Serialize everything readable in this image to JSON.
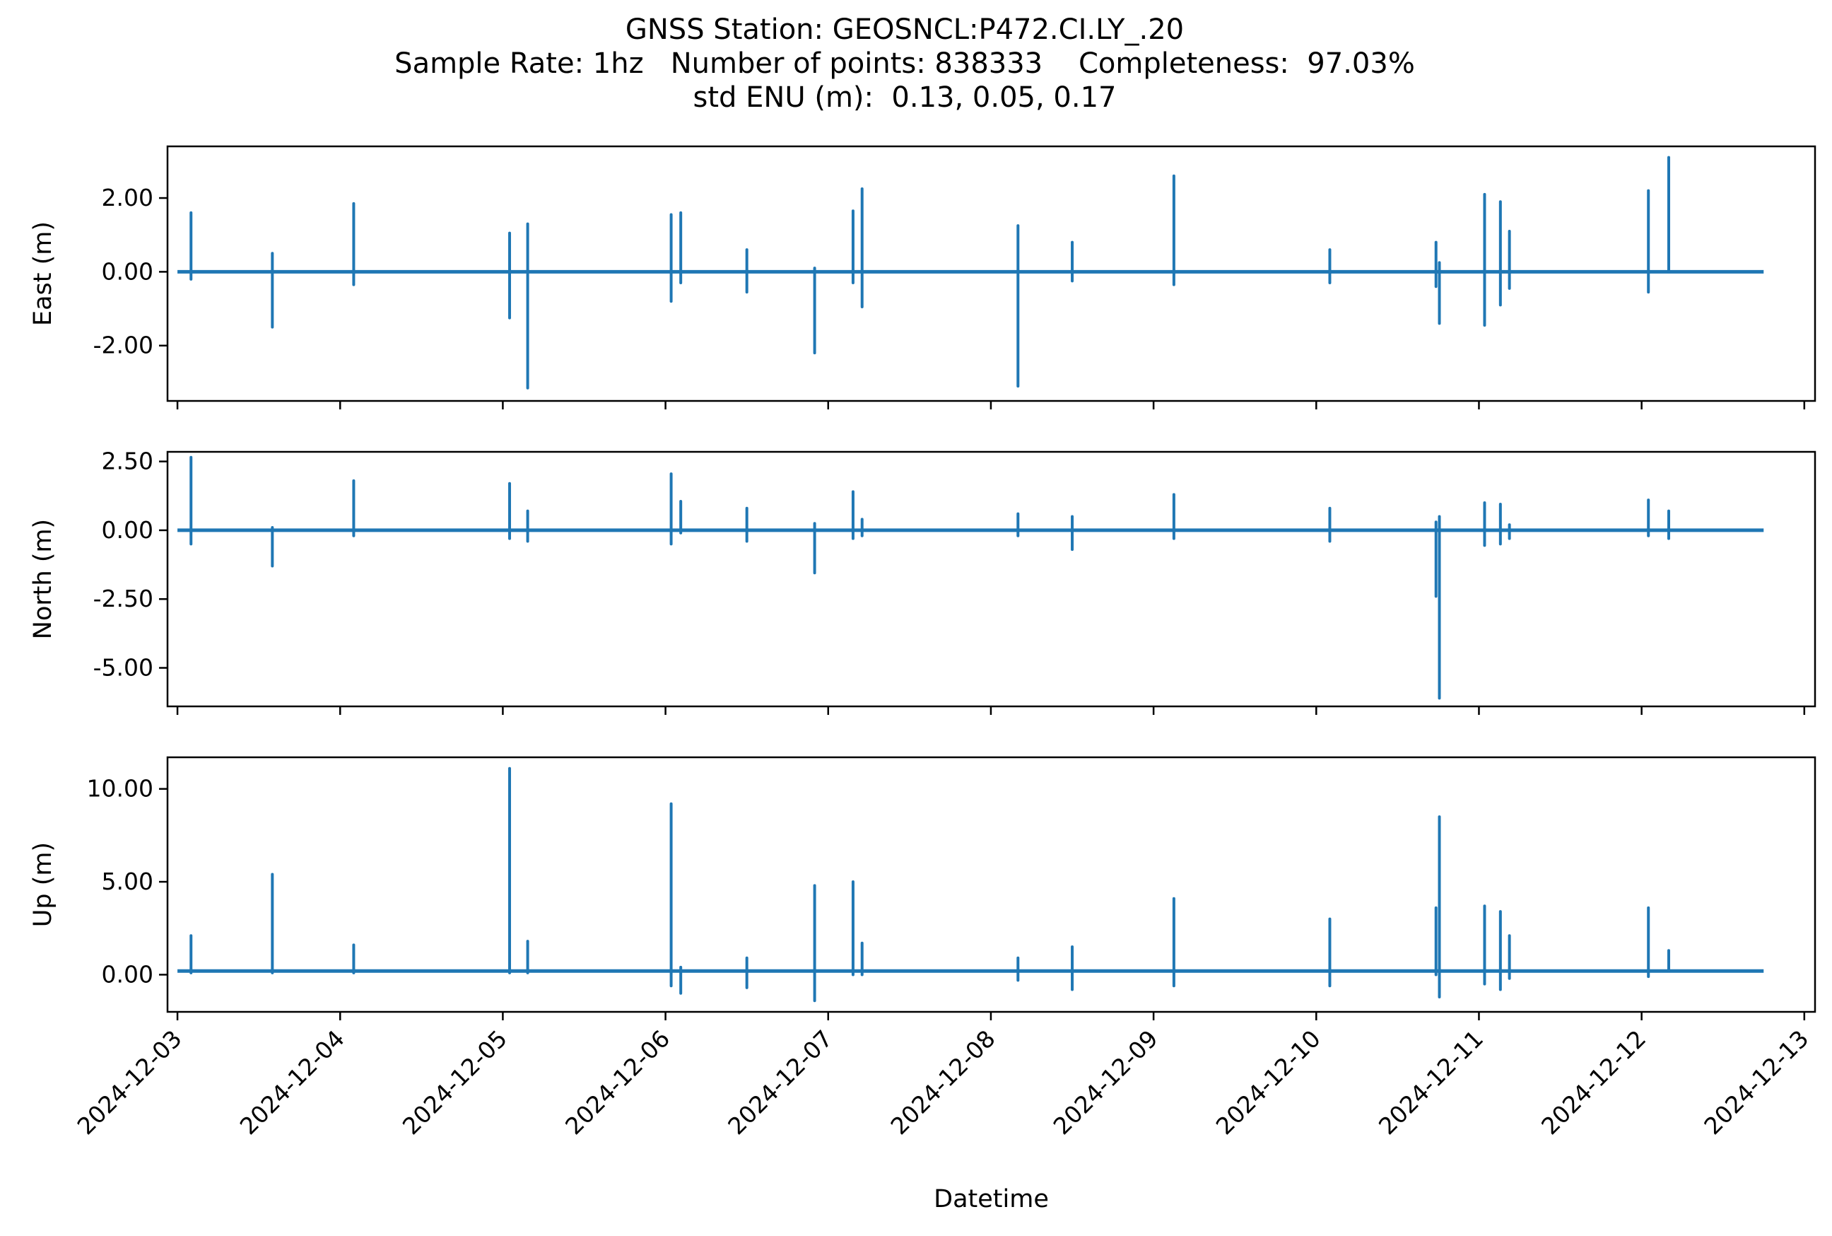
{
  "chart_data": {
    "type": "line",
    "title_lines": [
      "GNSS Station: GEOSNCL:P472.CI.LY_.20",
      "Sample Rate: 1hz   Number of points: 838333    Completeness:  97.03%",
      "std ENU (m):  0.13, 0.05, 0.17"
    ],
    "xlabel": "Datetime",
    "x_range": [
      "2024-12-02T22:32",
      "2024-12-13T01:35"
    ],
    "x_ticks": [
      "2024-12-03",
      "2024-12-04",
      "2024-12-05",
      "2024-12-06",
      "2024-12-07",
      "2024-12-08",
      "2024-12-09",
      "2024-12-10",
      "2024-12-11",
      "2024-12-12",
      "2024-12-13"
    ],
    "series_color": "#1f77b4",
    "grid": false,
    "panels": [
      {
        "name": "east",
        "ylabel": "East (m)",
        "ylim": [
          -3.5,
          3.4
        ],
        "yticks": [
          2.0,
          0.0,
          -2.0
        ],
        "ytick_labels": [
          "2.00",
          "0.00",
          "-2.00"
        ],
        "baseline": 0.0,
        "spikes": [
          [
            "2024-12-03T02:00",
            1.6,
            -0.2
          ],
          [
            "2024-12-03T14:00",
            0.5,
            -1.5
          ],
          [
            "2024-12-04T02:00",
            1.85,
            -0.35
          ],
          [
            "2024-12-05T01:00",
            1.05,
            -1.25
          ],
          [
            "2024-12-05T03:40",
            1.3,
            -3.15
          ],
          [
            "2024-12-06T00:50",
            1.55,
            -0.8
          ],
          [
            "2024-12-06T02:15",
            1.6,
            -0.3
          ],
          [
            "2024-12-06T12:00",
            0.6,
            -0.55
          ],
          [
            "2024-12-06T22:00",
            0.1,
            -2.2
          ],
          [
            "2024-12-07T03:40",
            1.65,
            -0.3
          ],
          [
            "2024-12-07T05:00",
            2.25,
            -0.95
          ],
          [
            "2024-12-08T04:00",
            1.25,
            -3.1
          ],
          [
            "2024-12-08T12:00",
            0.8,
            -0.25
          ],
          [
            "2024-12-09T03:00",
            2.6,
            -0.35
          ],
          [
            "2024-12-10T02:00",
            0.6,
            -0.3
          ],
          [
            "2024-12-10T17:40",
            0.8,
            -0.4
          ],
          [
            "2024-12-10T18:10",
            0.25,
            -1.4
          ],
          [
            "2024-12-11T00:50",
            2.1,
            -1.45
          ],
          [
            "2024-12-11T03:10",
            1.9,
            -0.9
          ],
          [
            "2024-12-11T04:30",
            1.1,
            -0.45
          ],
          [
            "2024-12-12T01:00",
            2.2,
            -0.55
          ],
          [
            "2024-12-12T04:00",
            3.1,
            0.0
          ]
        ]
      },
      {
        "name": "north",
        "ylabel": "North (m)",
        "ylim": [
          -6.4,
          2.85
        ],
        "yticks": [
          2.5,
          0.0,
          -2.5,
          -5.0
        ],
        "ytick_labels": [
          "2.50",
          "0.00",
          "-2.50",
          "-5.00"
        ],
        "baseline": 0.0,
        "spikes": [
          [
            "2024-12-03T02:00",
            2.65,
            -0.5
          ],
          [
            "2024-12-03T14:00",
            0.1,
            -1.3
          ],
          [
            "2024-12-04T02:00",
            1.8,
            -0.2
          ],
          [
            "2024-12-05T01:00",
            1.7,
            -0.3
          ],
          [
            "2024-12-05T03:40",
            0.7,
            -0.4
          ],
          [
            "2024-12-06T00:50",
            2.05,
            -0.5
          ],
          [
            "2024-12-06T02:15",
            1.05,
            -0.1
          ],
          [
            "2024-12-06T12:00",
            0.8,
            -0.4
          ],
          [
            "2024-12-06T22:00",
            0.25,
            -1.55
          ],
          [
            "2024-12-07T03:40",
            1.4,
            -0.3
          ],
          [
            "2024-12-07T05:00",
            0.4,
            -0.2
          ],
          [
            "2024-12-08T04:00",
            0.6,
            -0.2
          ],
          [
            "2024-12-08T12:00",
            0.5,
            -0.7
          ],
          [
            "2024-12-09T03:00",
            1.3,
            -0.3
          ],
          [
            "2024-12-10T02:00",
            0.8,
            -0.4
          ],
          [
            "2024-12-10T17:40",
            0.3,
            -2.4
          ],
          [
            "2024-12-10T18:10",
            0.5,
            -6.1
          ],
          [
            "2024-12-11T00:50",
            1.0,
            -0.55
          ],
          [
            "2024-12-11T03:10",
            0.95,
            -0.5
          ],
          [
            "2024-12-11T04:30",
            0.2,
            -0.3
          ],
          [
            "2024-12-12T01:00",
            1.1,
            -0.2
          ],
          [
            "2024-12-12T04:00",
            0.7,
            -0.3
          ]
        ]
      },
      {
        "name": "up",
        "ylabel": "Up (m)",
        "ylim": [
          -2.0,
          11.7
        ],
        "yticks": [
          10.0,
          5.0,
          0.0
        ],
        "ytick_labels": [
          "10.00",
          "5.00",
          "0.00"
        ],
        "baseline": 0.2,
        "spikes": [
          [
            "2024-12-03T02:00",
            2.1,
            0.1
          ],
          [
            "2024-12-03T14:00",
            5.4,
            0.1
          ],
          [
            "2024-12-04T02:00",
            1.6,
            0.1
          ],
          [
            "2024-12-05T01:00",
            11.1,
            0.1
          ],
          [
            "2024-12-05T03:40",
            1.8,
            0.1
          ],
          [
            "2024-12-06T00:50",
            9.2,
            -0.6
          ],
          [
            "2024-12-06T02:15",
            0.4,
            -1.0
          ],
          [
            "2024-12-06T12:00",
            0.9,
            -0.7
          ],
          [
            "2024-12-06T22:00",
            4.8,
            -1.4
          ],
          [
            "2024-12-07T03:40",
            5.0,
            0.0
          ],
          [
            "2024-12-07T05:00",
            1.7,
            0.0
          ],
          [
            "2024-12-08T04:00",
            0.9,
            -0.3
          ],
          [
            "2024-12-08T12:00",
            1.5,
            -0.8
          ],
          [
            "2024-12-09T03:00",
            4.1,
            -0.6
          ],
          [
            "2024-12-10T02:00",
            3.0,
            -0.6
          ],
          [
            "2024-12-10T17:40",
            3.6,
            0.0
          ],
          [
            "2024-12-10T18:10",
            8.5,
            -1.2
          ],
          [
            "2024-12-11T00:50",
            3.7,
            -0.5
          ],
          [
            "2024-12-11T03:10",
            3.4,
            -0.8
          ],
          [
            "2024-12-11T04:30",
            2.1,
            -0.2
          ],
          [
            "2024-12-12T01:00",
            3.6,
            -0.1
          ],
          [
            "2024-12-12T04:00",
            1.3,
            0.2
          ]
        ]
      }
    ]
  }
}
